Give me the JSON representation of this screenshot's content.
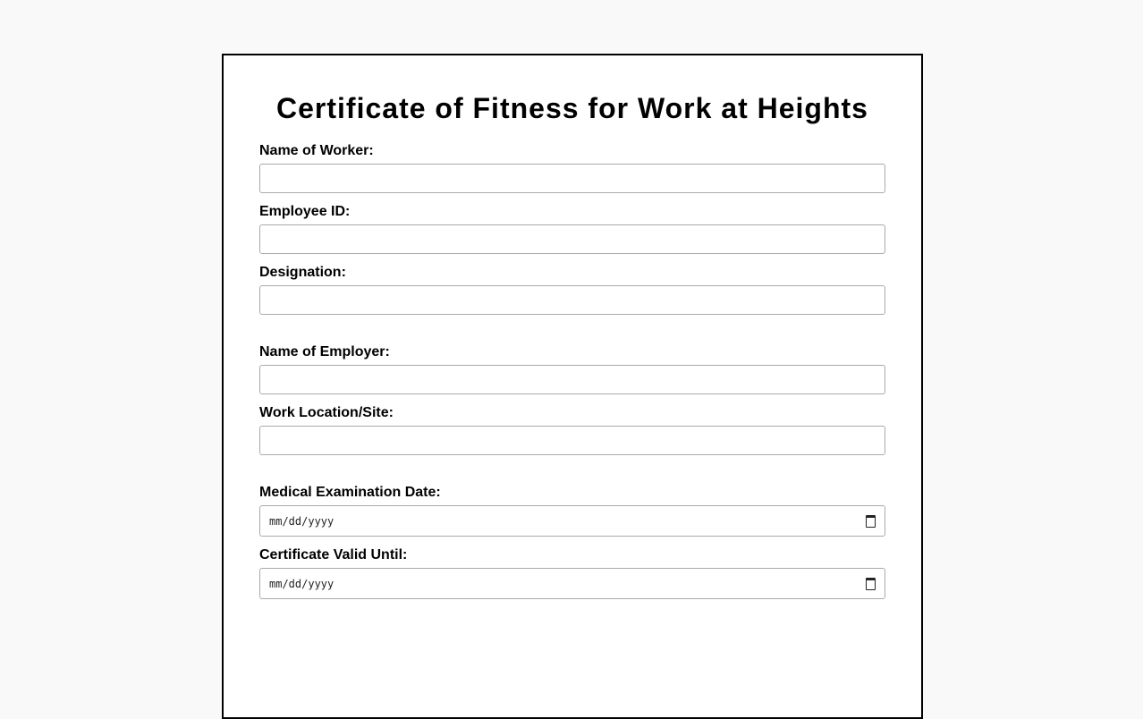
{
  "title": "Certificate of Fitness for Work at Heights",
  "sections": [
    {
      "fields": [
        {
          "label": "Name of Worker:",
          "value": ""
        },
        {
          "label": "Employee ID:",
          "value": ""
        },
        {
          "label": "Designation:",
          "value": ""
        }
      ]
    },
    {
      "fields": [
        {
          "label": "Name of Employer:",
          "value": ""
        },
        {
          "label": "Work Location/Site:",
          "value": ""
        }
      ]
    },
    {
      "fields": [
        {
          "label": "Medical Examination Date:",
          "placeholder": "mm/dd/yyyy"
        },
        {
          "label": "Certificate Valid Until:",
          "placeholder": "mm/dd/yyyy"
        }
      ]
    }
  ]
}
